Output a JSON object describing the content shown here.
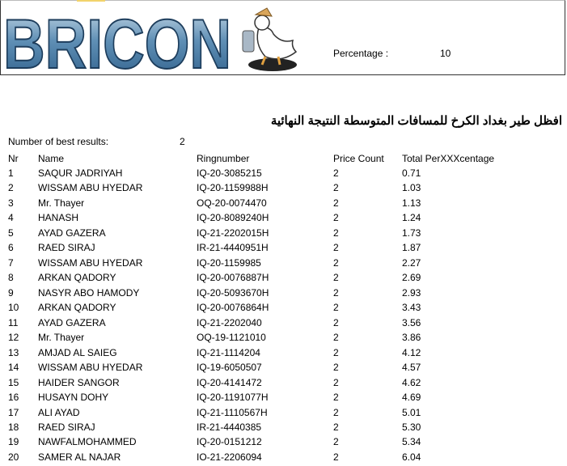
{
  "header": {
    "logo_text": "BRICON",
    "percentage_label": "Percentage :",
    "percentage_value": "10"
  },
  "title": "افظل طير بغداد الكرخ للمسافات المتوسطة النتيجة النهائية",
  "best_results": {
    "label": "Number of best results:",
    "value": "2"
  },
  "columns": [
    "Nr",
    "Name",
    "Ringnumber",
    "Price Count",
    "Total PerXXXcentage"
  ],
  "rows": [
    [
      "1",
      "SAQUR JADRIYAH",
      "IQ-20-3085215",
      "2",
      "0.71"
    ],
    [
      "2",
      "WISSAM ABU HYEDAR",
      "IQ-20-1159988H",
      "2",
      "1.03"
    ],
    [
      "3",
      "Mr. Thayer",
      "OQ-20-0074470",
      "2",
      "1.13"
    ],
    [
      "4",
      "HANASH",
      "IQ-20-8089240H",
      "2",
      "1.24"
    ],
    [
      "5",
      "AYAD GAZERA",
      "IQ-21-2202015H",
      "2",
      "1.73"
    ],
    [
      "6",
      "RAED SIRAJ",
      "IR-21-4440951H",
      "2",
      "1.87"
    ],
    [
      "7",
      "WISSAM ABU HYEDAR",
      "IQ-20-1159985",
      "2",
      "2.27"
    ],
    [
      "8",
      "ARKAN QADORY",
      "IQ-20-0076887H",
      "2",
      "2.69"
    ],
    [
      "9",
      "NASYR ABO HAMODY",
      "IQ-20-5093670H",
      "2",
      "2.93"
    ],
    [
      "10",
      "ARKAN QADORY",
      "IQ-20-0076864H",
      "2",
      "3.43"
    ],
    [
      "11",
      "AYAD GAZERA",
      "IQ-21-2202040",
      "2",
      "3.56"
    ],
    [
      "12",
      "Mr. Thayer",
      "OQ-19-1121010",
      "2",
      "3.86"
    ],
    [
      "13",
      "AMJAD AL SAIEG",
      "IQ-21-1114204",
      "2",
      "4.12"
    ],
    [
      "14",
      "WISSAM ABU HYEDAR",
      "IQ-19-6050507",
      "2",
      "4.57"
    ],
    [
      "15",
      "HAIDER SANGOR",
      "IQ-20-4141472",
      "2",
      "4.62"
    ],
    [
      "16",
      "HUSAYN DOHY",
      "IQ-20-1191077H",
      "2",
      "4.69"
    ],
    [
      "17",
      "ALI AYAD",
      "IQ-21-1110567H",
      "2",
      "5.01"
    ],
    [
      "18",
      "RAED SIRAJ",
      "IR-21-4440385",
      "2",
      "5.30"
    ],
    [
      "19",
      "NAWFALMOHAMMED",
      "IQ-20-0151212",
      "2",
      "5.34"
    ],
    [
      "20",
      "SAMER AL NAJAR",
      "IO-21-2206094",
      "2",
      "6.04"
    ]
  ]
}
